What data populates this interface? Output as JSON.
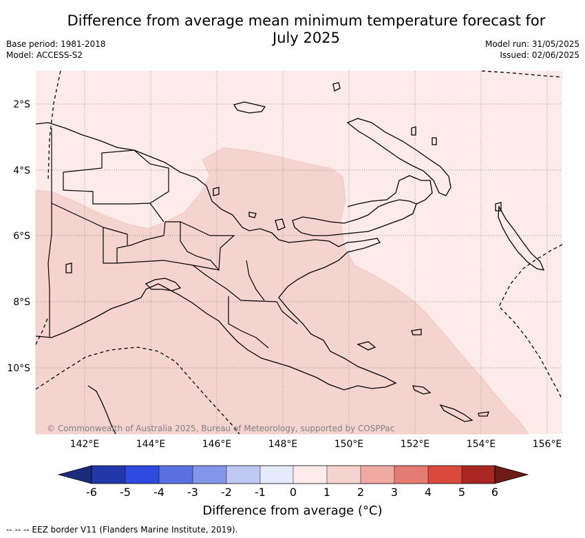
{
  "title": "Difference from average mean minimum temperature forecast for July 2025",
  "base_period": "Base period: 1981-2018",
  "model": "Model: ACCESS-S2",
  "model_run": "Model run: 31/05/2025",
  "issued": "Issued: 02/06/2025",
  "copyright": "© Commonwealth of Australia 2025, Bureau of Meteorology, supported by COSPPac",
  "footnote": "-- -- -- EEZ border V11 (Flanders Marine Institute, 2019).",
  "map": {
    "lon_ticks": [
      "142°E",
      "144°E",
      "146°E",
      "148°E",
      "150°E",
      "152°E",
      "154°E",
      "156°E"
    ],
    "lat_ticks": [
      "2°S",
      "4°S",
      "6°S",
      "8°S",
      "10°S"
    ],
    "colors": {
      "class_0_1": "#fcebe8",
      "class_1_2": "#f5d4d0",
      "coastline": "#000000",
      "eez": "#000000"
    }
  },
  "colorbar": {
    "title": "Difference from average (°C)",
    "tick_labels": [
      "-6",
      "-5",
      "-4",
      "-3",
      "-2",
      "-1",
      "0",
      "1",
      "2",
      "3",
      "4",
      "5",
      "6"
    ],
    "below_color": "#1a2b7a",
    "above_color": "#6e1a16",
    "colors": [
      "#2238a8",
      "#2f4ae0",
      "#5a6fe0",
      "#8595ea",
      "#c0c8f4",
      "#e6ebfb",
      "#fcebe8",
      "#f5d4d0",
      "#efaaa4",
      "#e47c73",
      "#d94a3d",
      "#aa2620"
    ]
  }
}
